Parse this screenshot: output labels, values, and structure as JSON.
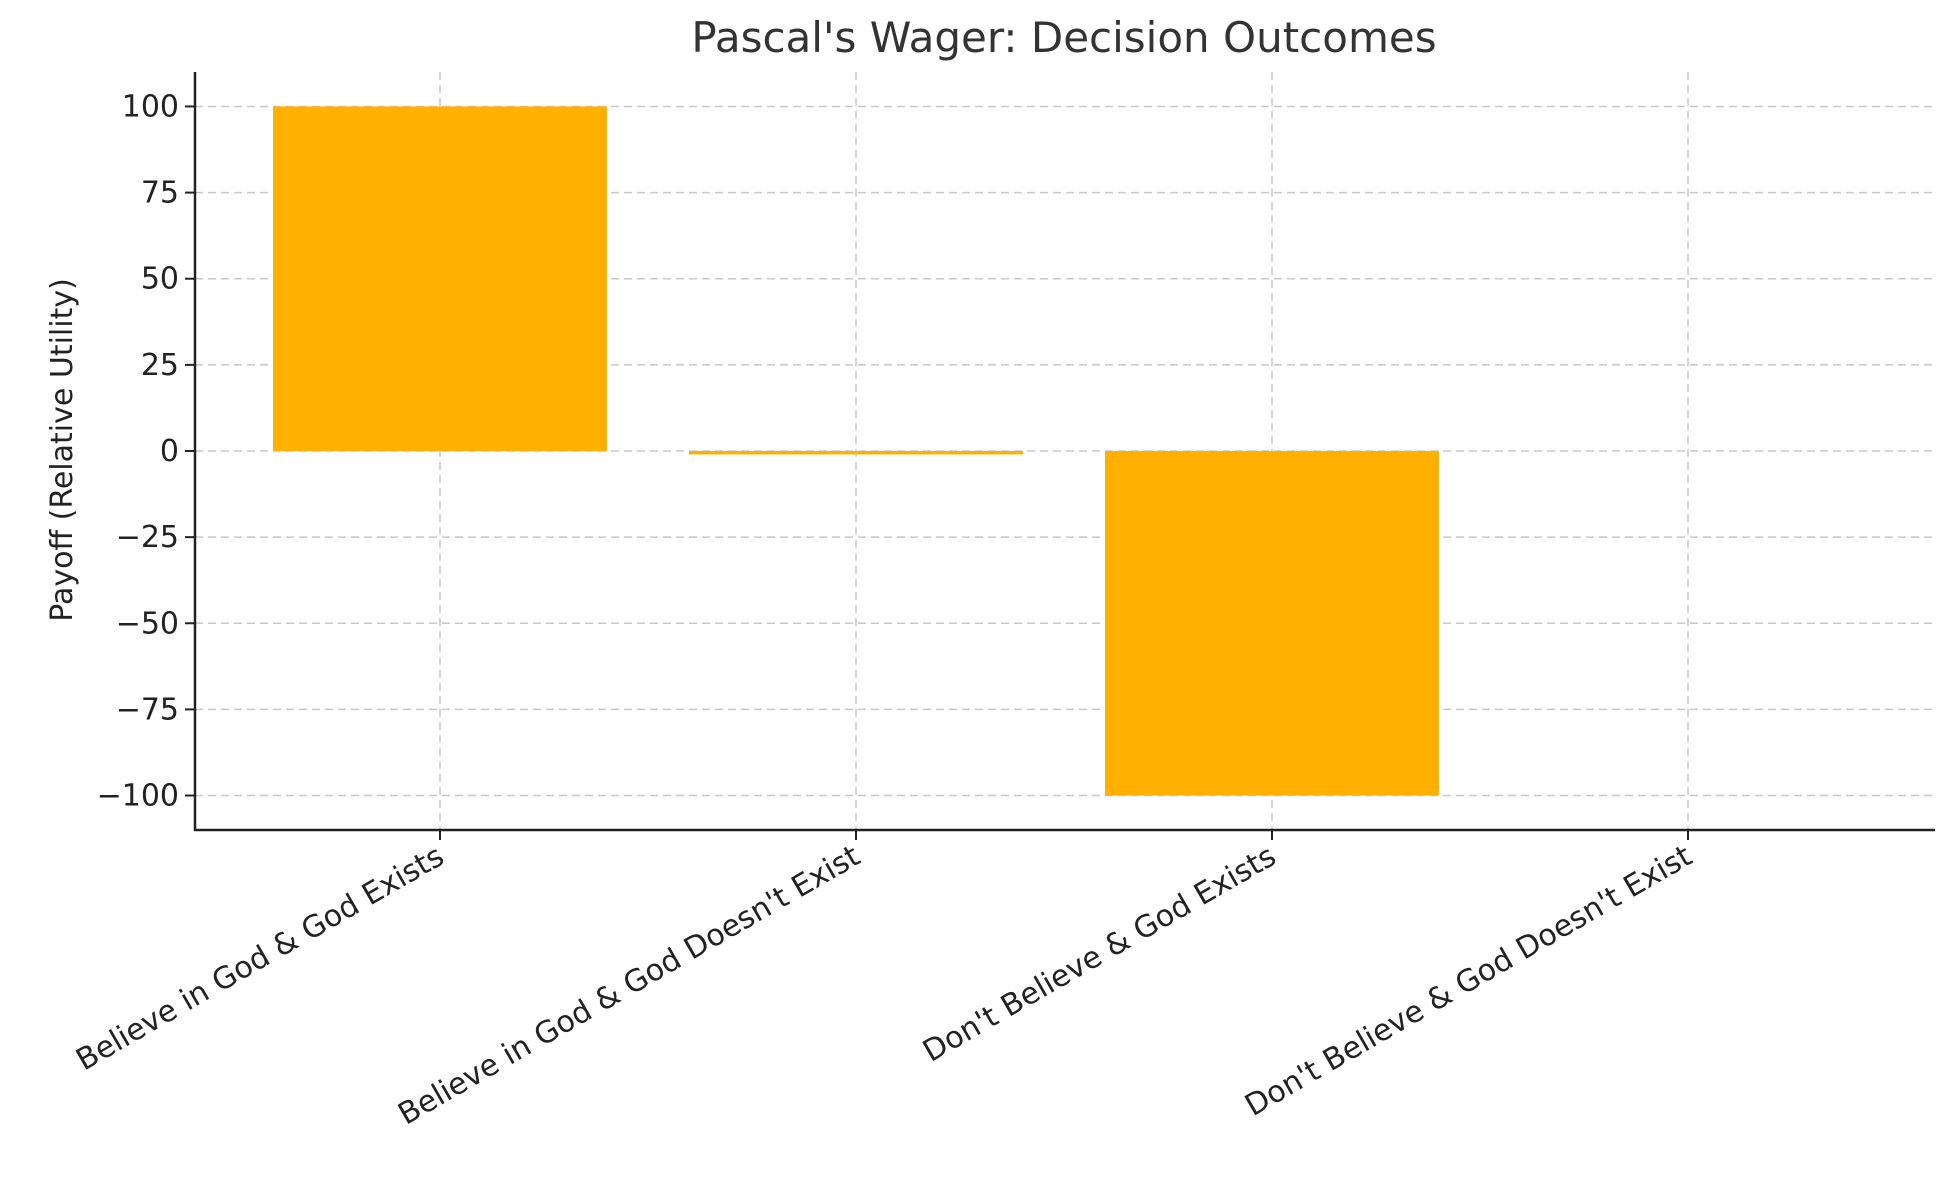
{
  "chart_data": {
    "type": "bar",
    "title": "Pascal's Wager: Decision Outcomes",
    "xlabel": "",
    "ylabel": "Payoff (Relative Utility)",
    "categories": [
      "Believe in God & God Exists",
      "Believe in God & God Doesn't Exist",
      "Don't Believe & God Exists",
      "Don't Believe & God Doesn't Exist"
    ],
    "values": [
      100,
      -1,
      -100,
      0
    ],
    "ylim": [
      -110,
      110
    ],
    "yticks": [
      100,
      75,
      50,
      25,
      0,
      -25,
      -50,
      -75,
      -100
    ],
    "ytick_labels": [
      "100",
      "75",
      "50",
      "25",
      "0",
      "−25",
      "−50",
      "−75",
      "−100"
    ],
    "grid": true,
    "legend": "none",
    "bar_color": "#ffb000"
  }
}
